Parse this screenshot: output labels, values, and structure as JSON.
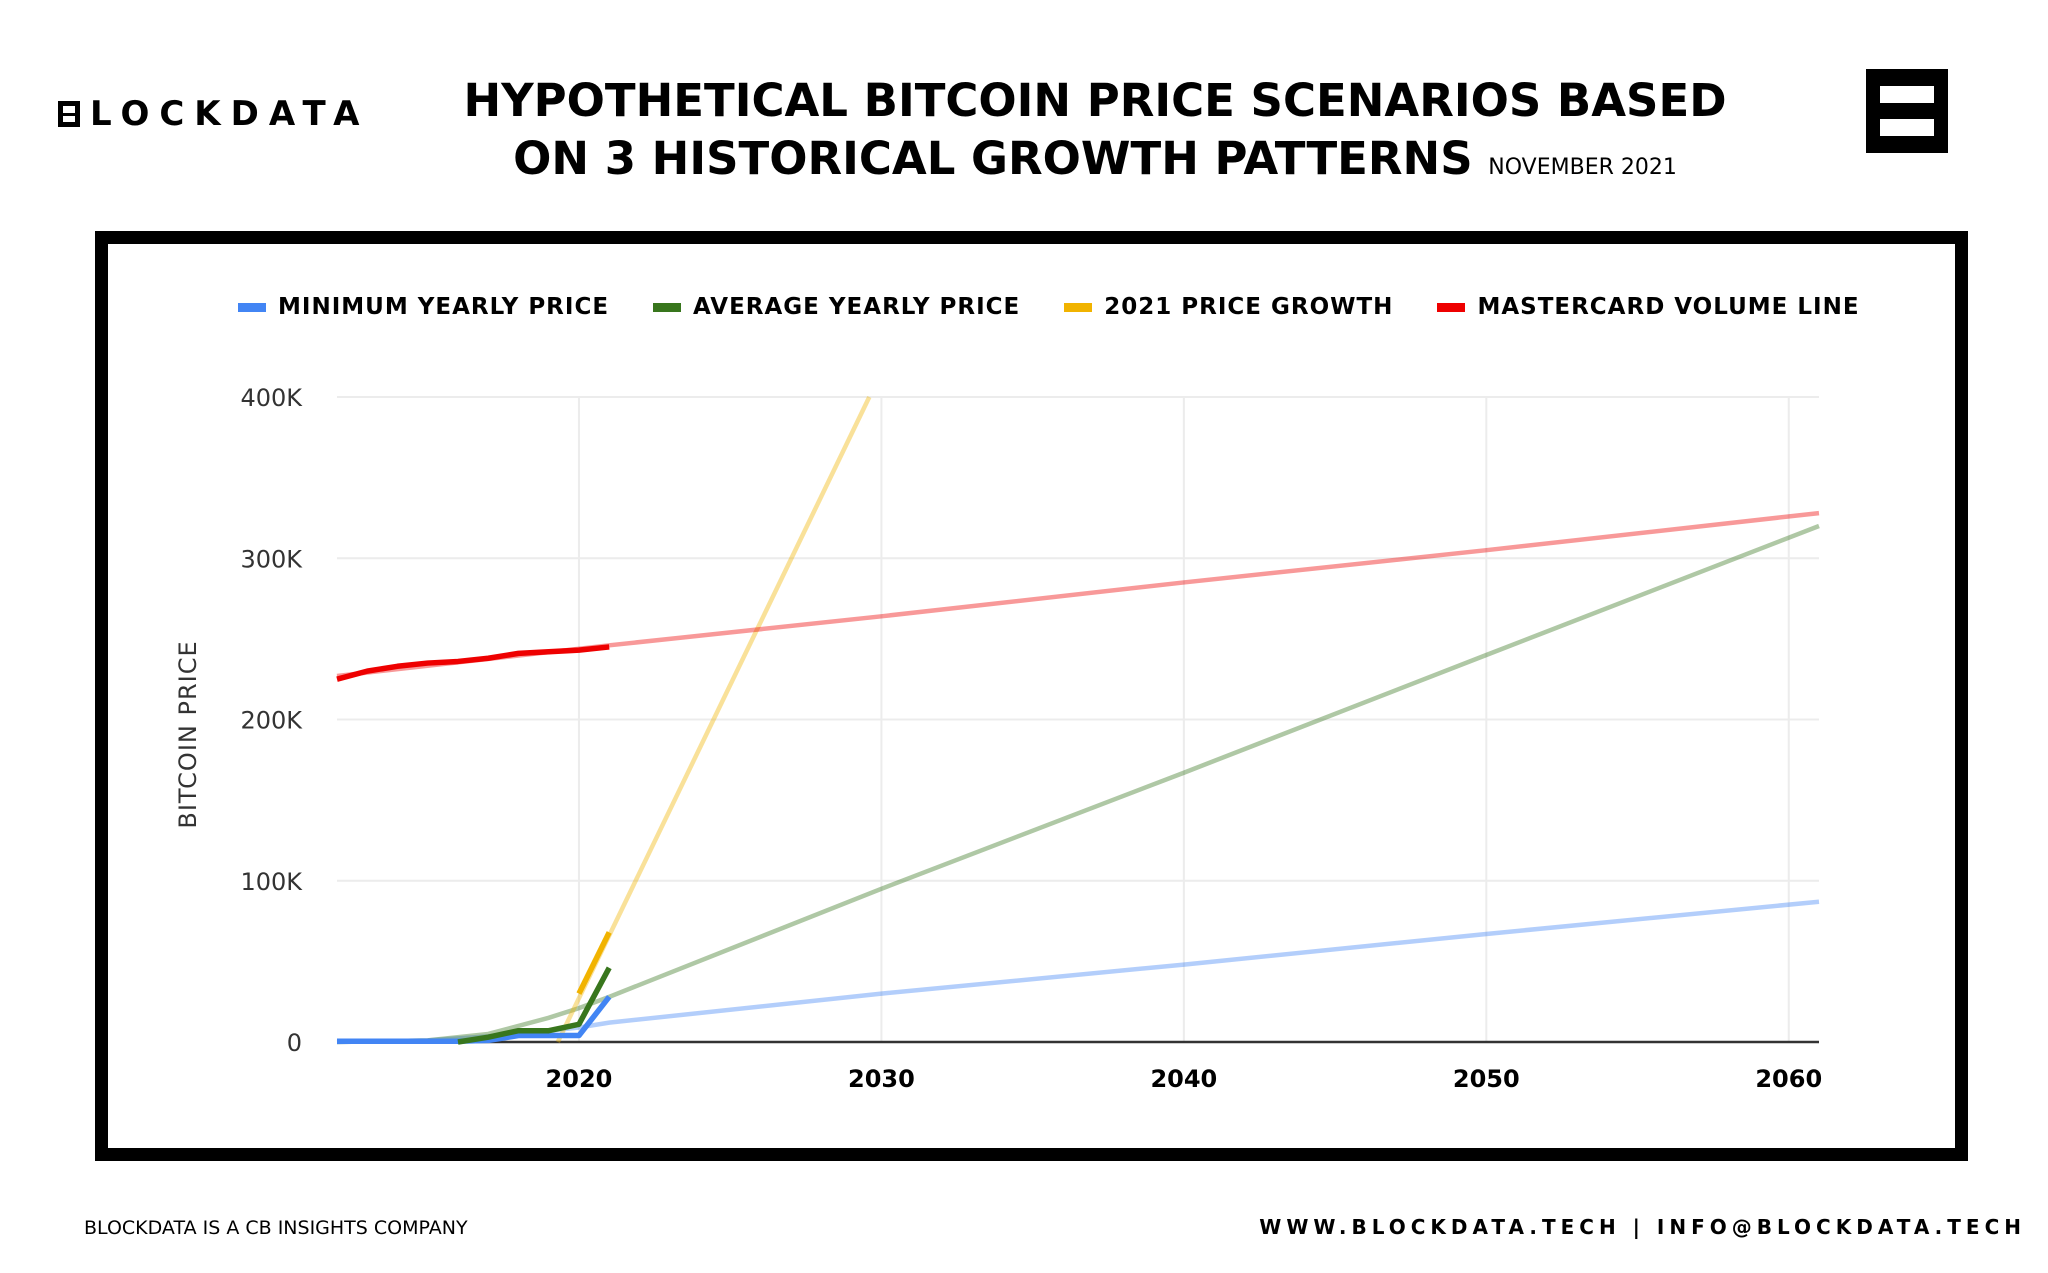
{
  "header": {
    "logo_text": "LOCKDATA",
    "title_line1": "HYPOTHETICAL BITCOIN PRICE SCENARIOS BASED",
    "title_line2": "ON 3 HISTORICAL GROWTH PATTERNS",
    "date": "NOVEMBER 2021"
  },
  "footer": {
    "left": "BLOCKDATA IS A CB INSIGHTS COMPANY",
    "right": "WWW.BLOCKDATA.TECH | INFO@BLOCKDATA.TECH"
  },
  "chart_data": {
    "type": "line",
    "ylabel": "BITCOIN PRICE",
    "xlabel": "",
    "xlim": [
      2012,
      2061
    ],
    "ylim": [
      0,
      400000
    ],
    "x_ticks": [
      2020,
      2030,
      2040,
      2050,
      2060
    ],
    "x_tick_labels": [
      "2020",
      "2030",
      "2040",
      "2050",
      "2060"
    ],
    "y_ticks": [
      0,
      100000,
      200000,
      300000,
      400000
    ],
    "y_tick_labels": [
      "0",
      "100K",
      "200K",
      "300K",
      "400K"
    ],
    "grid": true,
    "legend_position": "top",
    "series": [
      {
        "name": "MINIMUM YEARLY PRICE",
        "color": "#4285f4",
        "actual": {
          "x": [
            2012,
            2013,
            2014,
            2015,
            2016,
            2017,
            2018,
            2019,
            2020,
            2021
          ],
          "y": [
            500,
            500,
            500,
            500,
            500,
            1000,
            4000,
            4000,
            4000,
            28000
          ]
        },
        "projection": {
          "x": [
            2012,
            2015,
            2017,
            2019,
            2020,
            2021,
            2030,
            2040,
            2050,
            2061
          ],
          "y": [
            0,
            1000,
            3500,
            7000,
            9000,
            12000,
            30000,
            48000,
            67000,
            87000
          ]
        }
      },
      {
        "name": "AVERAGE YEARLY PRICE",
        "color": "#38761d",
        "actual": {
          "x": [
            2016,
            2017,
            2018,
            2019,
            2020,
            2021
          ],
          "y": [
            0,
            3000,
            7000,
            7000,
            11000,
            46000
          ]
        },
        "projection": {
          "x": [
            2012,
            2015,
            2017,
            2019,
            2020,
            2021,
            2030,
            2040,
            2050,
            2061
          ],
          "y": [
            0,
            1000,
            5000,
            15000,
            21000,
            28000,
            95000,
            167000,
            240000,
            320000
          ]
        }
      },
      {
        "name": "2021 PRICE GROWTH",
        "color": "#f1b300",
        "actual": {
          "x": [
            2020,
            2021
          ],
          "y": [
            30000,
            68000
          ]
        },
        "projection": {
          "x": [
            2019.3,
            2029.6
          ],
          "y": [
            0,
            400000
          ]
        }
      },
      {
        "name": "MASTERCARD VOLUME LINE",
        "color": "#ee0000",
        "actual": {
          "x": [
            2012,
            2013,
            2014,
            2015,
            2016,
            2017,
            2018,
            2019,
            2020,
            2021
          ],
          "y": [
            225000,
            230000,
            233000,
            235000,
            236000,
            238000,
            241000,
            242000,
            243000,
            245000
          ]
        },
        "projection": {
          "x": [
            2012,
            2021,
            2030,
            2040,
            2050,
            2061
          ],
          "y": [
            227000,
            246000,
            264000,
            285000,
            305000,
            328000
          ]
        }
      }
    ]
  }
}
